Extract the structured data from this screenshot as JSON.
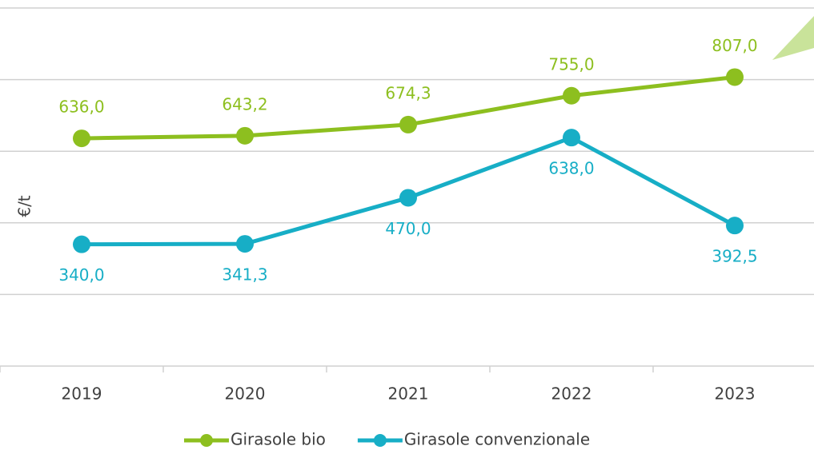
{
  "chart_data": {
    "type": "line",
    "y_label": "€/t",
    "categories": [
      "2019",
      "2020",
      "2021",
      "2022",
      "2023"
    ],
    "series": [
      {
        "name": "Girasole bio",
        "color": "#8dbf1f",
        "label_pos": "above",
        "values": [
          636.0,
          643.2,
          674.3,
          755.0,
          807.0
        ],
        "value_labels": [
          "636,0",
          "643,2",
          "674,3",
          "755,0",
          "807,0"
        ]
      },
      {
        "name": "Girasole convenzionale",
        "color": "#17aec6",
        "label_pos": "below",
        "values": [
          340.0,
          341.3,
          470.0,
          638.0,
          392.5
        ],
        "value_labels": [
          "340,0",
          "341,3",
          "470,0",
          "638,0",
          "392,5"
        ]
      }
    ],
    "ylim": [
      0,
      1000
    ],
    "yticks": [
      0,
      200,
      400,
      600,
      800,
      1000
    ],
    "grid": true
  }
}
